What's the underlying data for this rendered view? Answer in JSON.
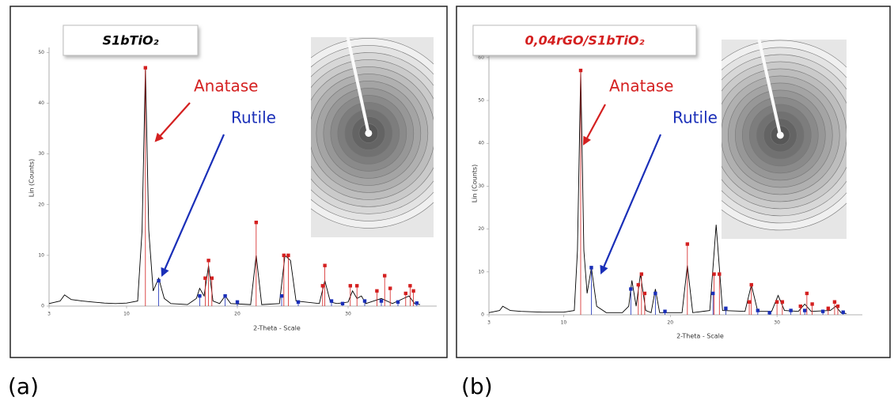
{
  "chart_data": [
    {
      "type": "line",
      "panel_label": "(a)",
      "title": "S1bTiO₂",
      "title_color": "#000000",
      "xlabel": "2-Theta - Scale",
      "ylabel": "Lin (Counts)",
      "xlim": [
        3,
        38
      ],
      "xticks": [
        3,
        10,
        20,
        30
      ],
      "ylim": [
        0,
        51
      ],
      "yticks": [
        0,
        10,
        20,
        30,
        40,
        50
      ],
      "series": [
        {
          "style": "line",
          "color": "#000000",
          "x": [
            3,
            4,
            4.4,
            5,
            6,
            7,
            8,
            9,
            10,
            11,
            11.4,
            11.7,
            12.0,
            12.4,
            12.9,
            13.4,
            14,
            15.5,
            16.3,
            16.6,
            17,
            17.4,
            17.8,
            18.4,
            18.9,
            19.4,
            21.2,
            21.7,
            22.2,
            23.8,
            24.3,
            24.8,
            25.3,
            27.4,
            27.9,
            28.4,
            29,
            30,
            30.4,
            30.8,
            31.2,
            31.6,
            33,
            34,
            35,
            35.5,
            36,
            36.5
          ],
          "values": [
            0.5,
            1,
            2.2,
            1.3,
            1,
            0.8,
            0.6,
            0.5,
            0.6,
            1,
            15,
            47,
            15,
            3,
            5.5,
            1.5,
            0.5,
            0.3,
            1.5,
            3.5,
            2,
            8,
            1,
            0.5,
            2,
            0.5,
            0.3,
            10,
            0.3,
            0.5,
            10,
            9,
            1,
            0.5,
            5,
            0.8,
            0.5,
            0.8,
            3,
            1.5,
            2,
            0.5,
            1.5,
            0.5,
            1.5,
            2,
            0.5,
            0.3
          ]
        },
        {
          "style": "stem",
          "name": "Anatase",
          "color": "#d42020",
          "x": [
            11.7,
            17.1,
            17.4,
            17.7,
            21.7,
            24.2,
            24.6,
            27.7,
            27.9,
            30.2,
            30.8,
            32.6,
            33.3,
            33.8,
            35.2,
            35.6,
            35.9
          ],
          "values": [
            47,
            5.5,
            9,
            5.5,
            16.5,
            10,
            10,
            4,
            8,
            4,
            4,
            3,
            6,
            3.5,
            2.5,
            4,
            3
          ]
        },
        {
          "style": "stem",
          "name": "Rutile",
          "color": "#1a2fb8",
          "x": [
            12.9,
            16.6,
            18.9,
            20,
            24,
            25.5,
            28.5,
            29.5,
            31.5,
            33,
            34.5,
            36.2
          ],
          "values": [
            5,
            2,
            2,
            0.8,
            2,
            0.8,
            1,
            0.5,
            1,
            1,
            0.8,
            0.6
          ]
        }
      ]
    },
    {
      "type": "line",
      "panel_label": "(b)",
      "title": "0,04rGO/S1bTiO₂",
      "title_color": "#d42020",
      "xlabel": "2-Theta - Scale",
      "ylabel": "Lin (Counts)",
      "xlim": [
        3,
        38
      ],
      "xticks": [
        3,
        10,
        20,
        30
      ],
      "ylim": [
        0,
        62
      ],
      "yticks": [
        0,
        10,
        20,
        30,
        40,
        50,
        60
      ],
      "series": [
        {
          "style": "line",
          "color": "#000000",
          "x": [
            3,
            4,
            4.3,
            5,
            6,
            8,
            10,
            11,
            11.3,
            11.6,
            11.9,
            12.2,
            12.6,
            13.1,
            14,
            15.5,
            16.1,
            16.4,
            16.8,
            17.2,
            17.7,
            18.2,
            18.6,
            19,
            21.1,
            21.6,
            22.1,
            23.7,
            24.3,
            24.9,
            27,
            27.6,
            28.2,
            29.5,
            30.1,
            30.7,
            32,
            32.6,
            33.2,
            35,
            35.5,
            36,
            36.5
          ],
          "values": [
            0.5,
            1,
            2,
            1,
            0.8,
            0.6,
            0.6,
            1,
            15,
            57,
            15,
            5,
            11,
            2,
            0.5,
            0.5,
            2,
            8,
            2,
            9.5,
            1,
            0.5,
            6,
            0.5,
            0.5,
            11.5,
            0.5,
            1,
            21,
            1,
            0.8,
            7,
            0.8,
            0.8,
            4.5,
            1,
            0.8,
            2.5,
            0.8,
            1,
            2,
            0.5,
            0.3
          ]
        },
        {
          "style": "stem",
          "name": "Anatase",
          "color": "#d42020",
          "x": [
            11.6,
            17.0,
            17.3,
            17.6,
            21.6,
            24.1,
            24.6,
            27.4,
            27.6,
            30.0,
            30.5,
            32.2,
            32.8,
            33.3,
            34.8,
            35.4,
            35.7
          ],
          "values": [
            57,
            7,
            9.5,
            5,
            16.5,
            9.5,
            9.5,
            3,
            7,
            3,
            3,
            2,
            5,
            2.5,
            1.5,
            3,
            2
          ]
        },
        {
          "style": "stem",
          "name": "Rutile",
          "color": "#1a2fb8",
          "x": [
            12.6,
            16.3,
            18.6,
            19.5,
            24.0,
            25.2,
            28.2,
            29.3,
            31.3,
            32.6,
            34.3,
            36.2
          ],
          "values": [
            11,
            6,
            5,
            0.8,
            5,
            1.5,
            1,
            0.5,
            1,
            1,
            0.8,
            0.6
          ]
        }
      ]
    }
  ]
}
